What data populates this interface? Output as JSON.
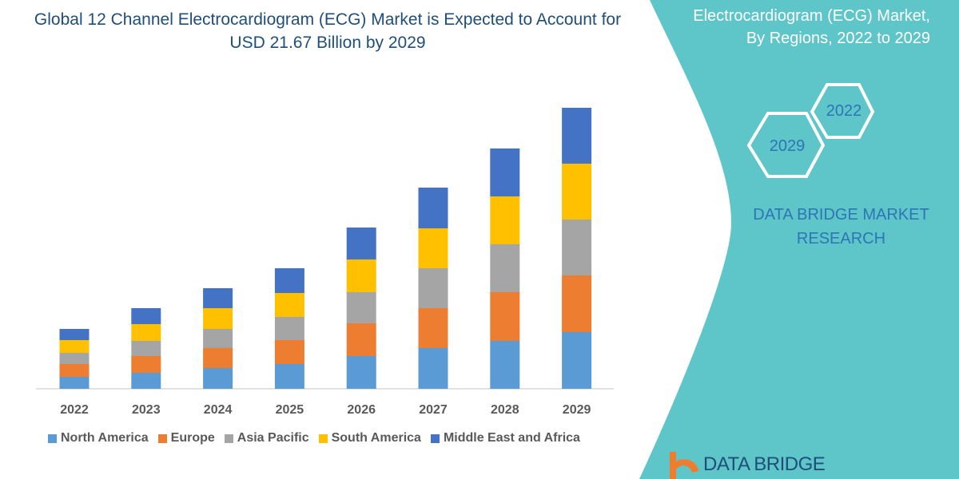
{
  "title": "Global 12 Channel Electrocardiogram (ECG) Market is Expected to Account for USD 21.67 Billion by 2029",
  "side_panel": {
    "title": "Electrocardiogram (ECG) Market, By Regions, 2022 to 2029",
    "hex_a": "2022",
    "hex_b": "2029",
    "brand": "DATA BRIDGE MARKET RESEARCH",
    "logo_text": "DATA BRIDGE",
    "panel_color": "#5EC5C9"
  },
  "chart_data": {
    "type": "bar",
    "stacked": true,
    "title": "",
    "xlabel": "",
    "ylabel": "",
    "ylim": [
      0,
      360
    ],
    "grid": false,
    "legend_position": "bottom",
    "categories": [
      "2022",
      "2023",
      "2024",
      "2025",
      "2026",
      "2027",
      "2028",
      "2029"
    ],
    "series": [
      {
        "name": "North America",
        "color": "#5B9BD5",
        "values": [
          15,
          20,
          26,
          31,
          41,
          51,
          60,
          71
        ]
      },
      {
        "name": "Europe",
        "color": "#ED7D31",
        "values": [
          16,
          21,
          25,
          30,
          41,
          50,
          61,
          71
        ]
      },
      {
        "name": "Asia Pacific",
        "color": "#A5A5A5",
        "values": [
          14,
          19,
          24,
          29,
          39,
          50,
          60,
          70
        ]
      },
      {
        "name": "South America",
        "color": "#FFC000",
        "values": [
          16,
          21,
          26,
          30,
          41,
          50,
          60,
          70
        ]
      },
      {
        "name": "Middle East and Africa",
        "color": "#4472C4",
        "values": [
          14,
          20,
          25,
          31,
          40,
          51,
          60,
          70
        ]
      }
    ]
  }
}
